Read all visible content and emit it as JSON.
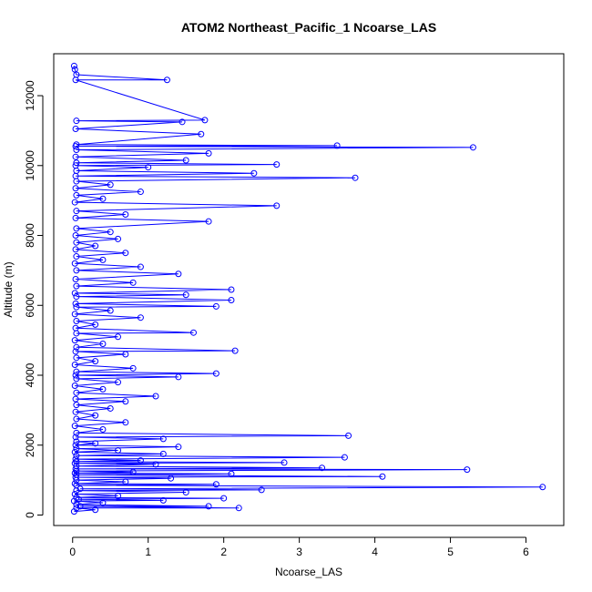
{
  "chart_data": {
    "type": "scatter",
    "title": "ATOM2 Northeast_Pacific_1 Ncoarse_LAS",
    "xlabel": "Ncoarse_LAS",
    "ylabel": "Altitude (m)",
    "xlim": [
      -0.25,
      6.5
    ],
    "ylim": [
      -300,
      13200
    ],
    "x_ticks": [
      0,
      1,
      2,
      3,
      4,
      5,
      6
    ],
    "y_ticks": [
      0,
      2000,
      4000,
      6000,
      8000,
      10000,
      12000
    ],
    "grid": false,
    "color": "#0000ff",
    "series": [
      {
        "points": [
          [
            0.02,
            100
          ],
          [
            0.3,
            150
          ],
          [
            0.05,
            200
          ],
          [
            2.2,
            200
          ],
          [
            0.1,
            250
          ],
          [
            1.8,
            250
          ],
          [
            0.05,
            300
          ],
          [
            0.4,
            350
          ],
          [
            0.02,
            400
          ],
          [
            1.2,
            420
          ],
          [
            0.08,
            450
          ],
          [
            2.0,
            480
          ],
          [
            0.05,
            500
          ],
          [
            0.6,
            550
          ],
          [
            0.03,
            600
          ],
          [
            1.5,
            650
          ],
          [
            0.05,
            700
          ],
          [
            2.5,
            720
          ],
          [
            0.1,
            750
          ],
          [
            6.22,
            800
          ],
          [
            0.05,
            850
          ],
          [
            1.9,
            880
          ],
          [
            0.03,
            900
          ],
          [
            0.7,
            950
          ],
          [
            0.05,
            1000
          ],
          [
            1.3,
            1050
          ],
          [
            0.04,
            1080
          ],
          [
            4.1,
            1100
          ],
          [
            0.05,
            1150
          ],
          [
            2.1,
            1180
          ],
          [
            0.03,
            1200
          ],
          [
            0.8,
            1230
          ],
          [
            0.05,
            1260
          ],
          [
            5.22,
            1300
          ],
          [
            0.04,
            1320
          ],
          [
            3.3,
            1350
          ],
          [
            0.05,
            1400
          ],
          [
            1.1,
            1450
          ],
          [
            0.03,
            1480
          ],
          [
            2.8,
            1500
          ],
          [
            0.05,
            1530
          ],
          [
            0.9,
            1560
          ],
          [
            0.04,
            1600
          ],
          [
            3.6,
            1650
          ],
          [
            0.05,
            1700
          ],
          [
            1.2,
            1750
          ],
          [
            0.03,
            1800
          ],
          [
            0.6,
            1850
          ],
          [
            0.05,
            1900
          ],
          [
            1.4,
            1950
          ],
          [
            0.04,
            2000
          ],
          [
            0.3,
            2050
          ],
          [
            0.05,
            2100
          ],
          [
            1.2,
            2180
          ],
          [
            0.04,
            2230
          ],
          [
            3.65,
            2270
          ],
          [
            0.05,
            2350
          ],
          [
            0.4,
            2450
          ],
          [
            0.03,
            2550
          ],
          [
            0.7,
            2650
          ],
          [
            0.05,
            2750
          ],
          [
            0.3,
            2850
          ],
          [
            0.04,
            2950
          ],
          [
            0.5,
            3050
          ],
          [
            0.05,
            3150
          ],
          [
            0.7,
            3250
          ],
          [
            0.04,
            3320
          ],
          [
            1.1,
            3400
          ],
          [
            0.05,
            3500
          ],
          [
            0.4,
            3600
          ],
          [
            0.03,
            3700
          ],
          [
            0.6,
            3800
          ],
          [
            0.05,
            3900
          ],
          [
            1.4,
            3950
          ],
          [
            0.04,
            4000
          ],
          [
            1.9,
            4050
          ],
          [
            0.05,
            4100
          ],
          [
            0.8,
            4200
          ],
          [
            0.03,
            4300
          ],
          [
            0.3,
            4400
          ],
          [
            0.05,
            4500
          ],
          [
            0.7,
            4600
          ],
          [
            0.04,
            4680
          ],
          [
            2.15,
            4700
          ],
          [
            0.05,
            4800
          ],
          [
            0.4,
            4900
          ],
          [
            0.03,
            5000
          ],
          [
            0.6,
            5100
          ],
          [
            0.05,
            5200
          ],
          [
            1.6,
            5220
          ],
          [
            0.04,
            5350
          ],
          [
            0.3,
            5450
          ],
          [
            0.05,
            5550
          ],
          [
            0.9,
            5650
          ],
          [
            0.03,
            5750
          ],
          [
            0.5,
            5850
          ],
          [
            0.05,
            5950
          ],
          [
            1.9,
            5970
          ],
          [
            0.04,
            6050
          ],
          [
            2.1,
            6150
          ],
          [
            0.05,
            6250
          ],
          [
            1.5,
            6300
          ],
          [
            0.03,
            6350
          ],
          [
            2.1,
            6450
          ],
          [
            0.05,
            6550
          ],
          [
            0.8,
            6650
          ],
          [
            0.04,
            6750
          ],
          [
            1.4,
            6900
          ],
          [
            0.05,
            7000
          ],
          [
            0.9,
            7100
          ],
          [
            0.03,
            7200
          ],
          [
            0.4,
            7300
          ],
          [
            0.05,
            7400
          ],
          [
            0.7,
            7500
          ],
          [
            0.04,
            7600
          ],
          [
            0.3,
            7700
          ],
          [
            0.05,
            7800
          ],
          [
            0.6,
            7900
          ],
          [
            0.04,
            8000
          ],
          [
            0.5,
            8100
          ],
          [
            0.05,
            8200
          ],
          [
            1.8,
            8400
          ],
          [
            0.04,
            8500
          ],
          [
            0.7,
            8600
          ],
          [
            0.05,
            8700
          ],
          [
            2.7,
            8850
          ],
          [
            0.03,
            8950
          ],
          [
            0.4,
            9050
          ],
          [
            0.05,
            9150
          ],
          [
            0.9,
            9250
          ],
          [
            0.04,
            9350
          ],
          [
            0.5,
            9450
          ],
          [
            0.05,
            9550
          ],
          [
            3.74,
            9650
          ],
          [
            0.04,
            9700
          ],
          [
            2.4,
            9780
          ],
          [
            0.05,
            9850
          ],
          [
            1.0,
            9950
          ],
          [
            0.04,
            10000
          ],
          [
            2.7,
            10030
          ],
          [
            0.05,
            10080
          ],
          [
            1.5,
            10150
          ],
          [
            0.04,
            10250
          ],
          [
            1.8,
            10350
          ],
          [
            0.05,
            10450
          ],
          [
            5.3,
            10520
          ],
          [
            0.04,
            10550
          ],
          [
            3.5,
            10570
          ],
          [
            0.05,
            10600
          ],
          [
            1.7,
            10900
          ],
          [
            0.04,
            11050
          ],
          [
            1.45,
            11250
          ],
          [
            0.05,
            11280
          ],
          [
            1.75,
            11300
          ],
          [
            0.04,
            12450
          ],
          [
            1.25,
            12450
          ],
          [
            0.05,
            12600
          ],
          [
            0.03,
            12750
          ],
          [
            0.02,
            12850
          ]
        ]
      }
    ]
  }
}
